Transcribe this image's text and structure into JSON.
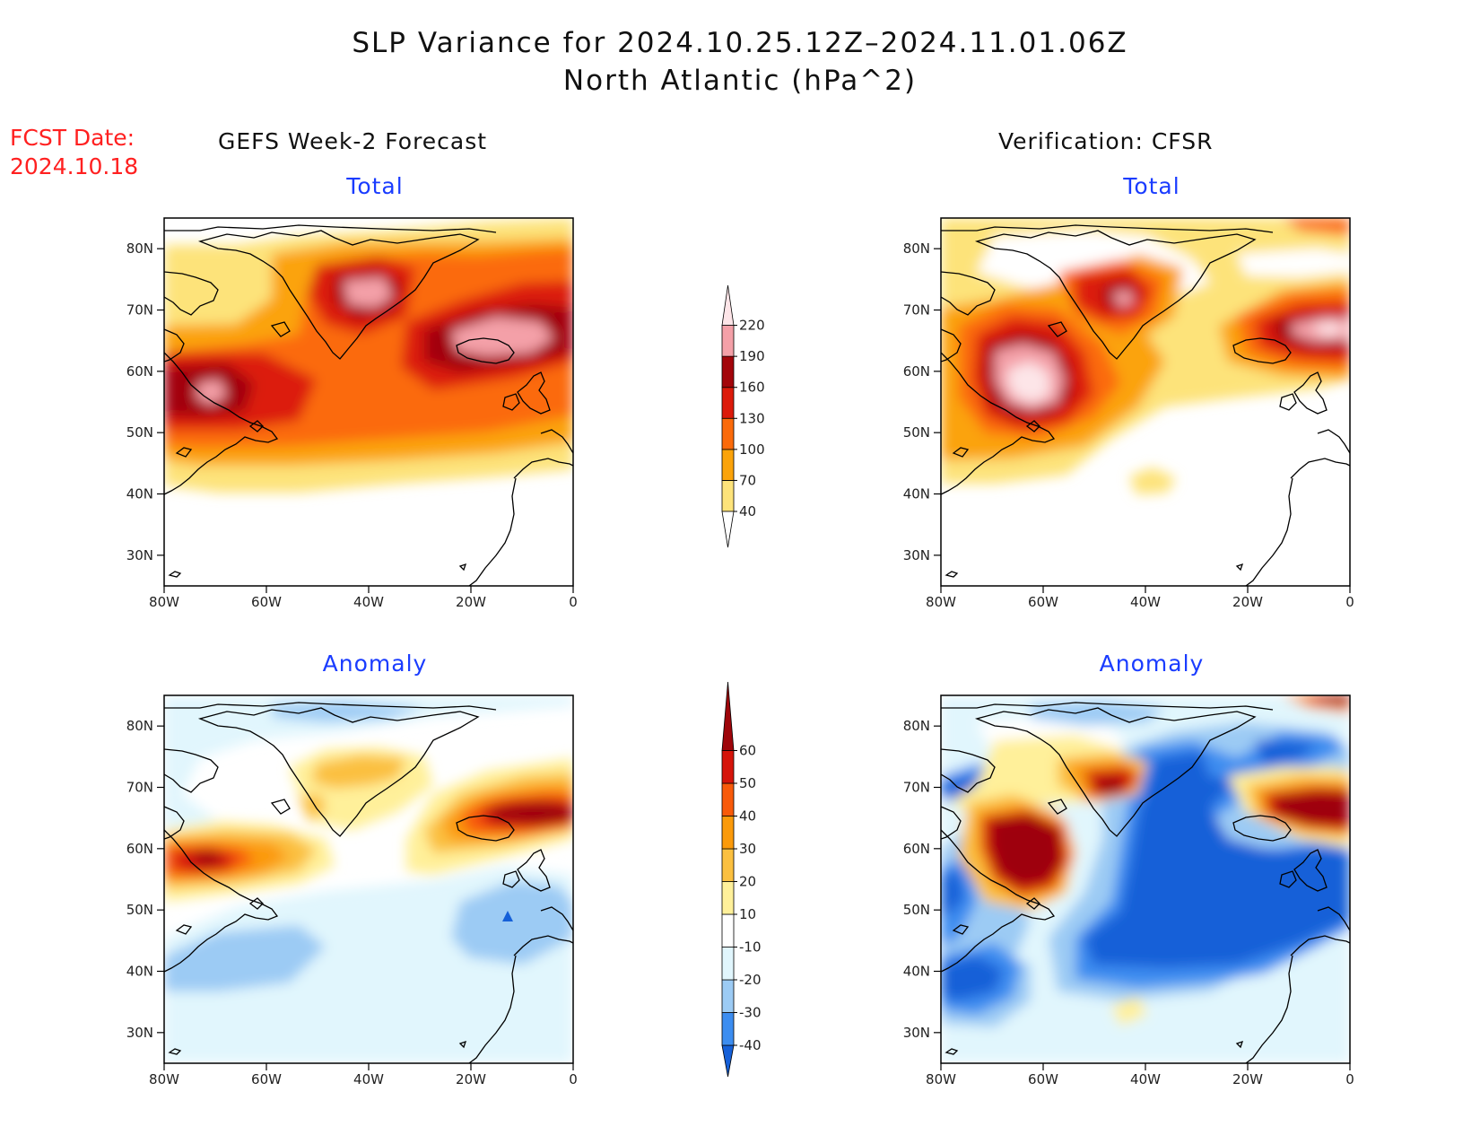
{
  "title": {
    "line1": "SLP Variance for 2024.10.25.12Z–2024.11.01.06Z",
    "line2": "North Atlantic (hPa^2)"
  },
  "forecast_date": {
    "label": "FCST Date:",
    "value": "2024.10.18"
  },
  "columns": {
    "left": "GEFS Week-2 Forecast",
    "right": "Verification: CFSR"
  },
  "panels": [
    {
      "id": "forecast-total",
      "subtitle": "Total"
    },
    {
      "id": "verification-total",
      "subtitle": "Total"
    },
    {
      "id": "forecast-anomaly",
      "subtitle": "Anomaly"
    },
    {
      "id": "verification-anomaly",
      "subtitle": "Anomaly"
    }
  ],
  "axes": {
    "lat_labels": [
      "80N",
      "70N",
      "60N",
      "50N",
      "40N",
      "30N"
    ],
    "lat_values": [
      80,
      70,
      60,
      50,
      40,
      30
    ],
    "lon_labels": [
      "80W",
      "60W",
      "40W",
      "20W",
      "0"
    ],
    "lon_values": [
      -80,
      -60,
      -40,
      -20,
      0
    ],
    "lat_range": [
      25,
      85
    ],
    "lon_range": [
      -80,
      0
    ]
  },
  "colorbars": {
    "total": {
      "labels": [
        "40",
        "70",
        "100",
        "130",
        "160",
        "190",
        "220"
      ],
      "colors": [
        "#fde37a",
        "#fba30a",
        "#fb6a0a",
        "#dc1a0a",
        "#a3050a",
        "#f4a0a8",
        "#fde5e8"
      ]
    },
    "anomaly": {
      "labels": [
        "-40",
        "-30",
        "-20",
        "-10",
        "10",
        "20",
        "30",
        "40",
        "50",
        "60"
      ],
      "colors": [
        "#1560d8",
        "#3c8df0",
        "#9ccbf4",
        "#e1f6fd",
        "#ffffff",
        "#fff09a",
        "#fbc040",
        "#fb9a0a",
        "#f85a0a",
        "#d5140a",
        "#9e050a"
      ]
    }
  }
}
